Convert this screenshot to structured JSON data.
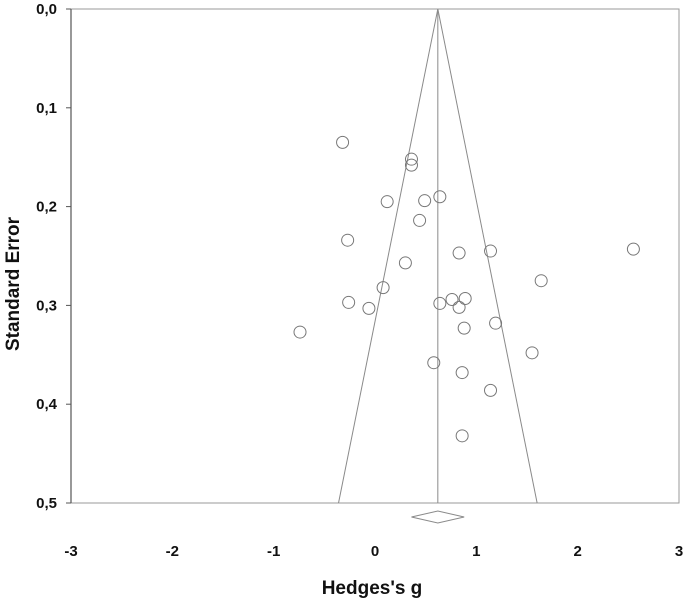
{
  "chart_data": {
    "type": "scatter",
    "subtype": "funnel-plot",
    "xlabel": "Hedges's g",
    "ylabel": "Standard Error",
    "xlim": [
      -3,
      3
    ],
    "ylim": [
      0.5,
      0.0
    ],
    "y_axis_inverted": true,
    "x_ticks": [
      -3,
      -2,
      -1,
      0,
      1,
      2,
      3
    ],
    "x_tick_labels": [
      "-3",
      "-2",
      "-1",
      "0",
      "1",
      "2",
      "3"
    ],
    "y_ticks": [
      0.0,
      0.1,
      0.2,
      0.3,
      0.4,
      0.5
    ],
    "y_tick_labels": [
      "0,0",
      "0,1",
      "0,2",
      "0,3",
      "0,4",
      "0,5"
    ],
    "grid": false,
    "pooled_effect": 0.62,
    "funnel_multiplier": 1.96,
    "points": [
      {
        "x": -0.32,
        "y": 0.135
      },
      {
        "x": 0.36,
        "y": 0.152
      },
      {
        "x": 0.36,
        "y": 0.158
      },
      {
        "x": 0.12,
        "y": 0.195
      },
      {
        "x": 0.49,
        "y": 0.194
      },
      {
        "x": 0.64,
        "y": 0.19
      },
      {
        "x": 0.44,
        "y": 0.214
      },
      {
        "x": -0.27,
        "y": 0.234
      },
      {
        "x": 0.83,
        "y": 0.247
      },
      {
        "x": 1.14,
        "y": 0.245
      },
      {
        "x": 2.55,
        "y": 0.243
      },
      {
        "x": 0.3,
        "y": 0.257
      },
      {
        "x": 1.64,
        "y": 0.275
      },
      {
        "x": 0.08,
        "y": 0.282
      },
      {
        "x": -0.26,
        "y": 0.297
      },
      {
        "x": 0.64,
        "y": 0.298
      },
      {
        "x": 0.76,
        "y": 0.294
      },
      {
        "x": 0.89,
        "y": 0.293
      },
      {
        "x": 0.83,
        "y": 0.302
      },
      {
        "x": -0.06,
        "y": 0.303
      },
      {
        "x": 1.19,
        "y": 0.318
      },
      {
        "x": 0.88,
        "y": 0.323
      },
      {
        "x": -0.74,
        "y": 0.327
      },
      {
        "x": 1.55,
        "y": 0.348
      },
      {
        "x": 0.58,
        "y": 0.358
      },
      {
        "x": 0.86,
        "y": 0.368
      },
      {
        "x": 1.14,
        "y": 0.386
      },
      {
        "x": 0.86,
        "y": 0.432
      }
    ],
    "summary_diamond": {
      "center": 0.62,
      "lower": 0.36,
      "upper": 0.88
    },
    "colors": {
      "point_stroke": "#777777",
      "axis": "#9a9a9a",
      "funnel": "#8a8a8a",
      "text": "#111111"
    }
  }
}
